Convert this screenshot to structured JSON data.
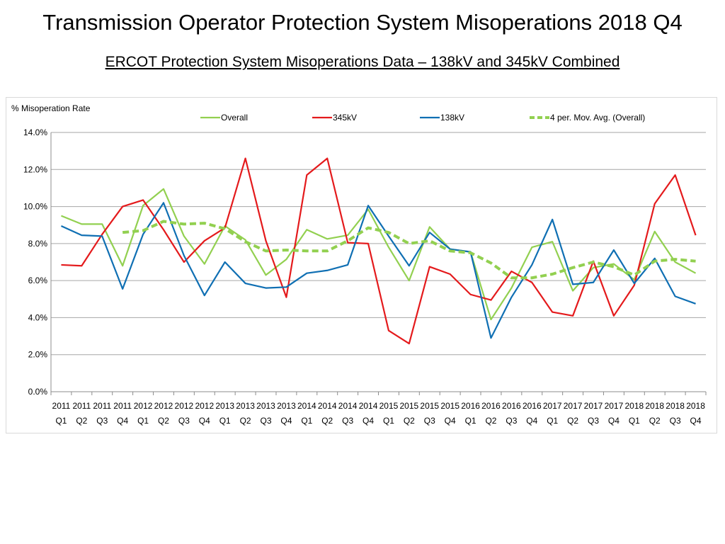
{
  "header": {
    "title": "Transmission Operator Protection System Misoperations 2018 Q4",
    "subtitle": "ERCOT Protection System Misoperations Data – 138kV and 345kV Combined"
  },
  "chart_data": {
    "type": "line",
    "ylabel": "% Misoperation Rate",
    "ylim": [
      0,
      14
    ],
    "yticks": [
      "0.0%",
      "2.0%",
      "4.0%",
      "6.0%",
      "8.0%",
      "10.0%",
      "12.0%",
      "14.0%"
    ],
    "grid": true,
    "legend_position": "top",
    "categories": [
      [
        "2011",
        "Q1"
      ],
      [
        "2011",
        "Q2"
      ],
      [
        "2011",
        "Q3"
      ],
      [
        "2011",
        "Q4"
      ],
      [
        "2012",
        "Q1"
      ],
      [
        "2012",
        "Q2"
      ],
      [
        "2012",
        "Q3"
      ],
      [
        "2012",
        "Q4"
      ],
      [
        "2013",
        "Q1"
      ],
      [
        "2013",
        "Q2"
      ],
      [
        "2013",
        "Q3"
      ],
      [
        "2013",
        "Q4"
      ],
      [
        "2014",
        "Q1"
      ],
      [
        "2014",
        "Q2"
      ],
      [
        "2014",
        "Q3"
      ],
      [
        "2014",
        "Q4"
      ],
      [
        "2015",
        "Q1"
      ],
      [
        "2015",
        "Q2"
      ],
      [
        "2015",
        "Q3"
      ],
      [
        "2015",
        "Q4"
      ],
      [
        "2016",
        "Q1"
      ],
      [
        "2016",
        "Q2"
      ],
      [
        "2016",
        "Q3"
      ],
      [
        "2016",
        "Q4"
      ],
      [
        "2017",
        "Q1"
      ],
      [
        "2017",
        "Q2"
      ],
      [
        "2017",
        "Q3"
      ],
      [
        "2017",
        "Q4"
      ],
      [
        "2018",
        "Q1"
      ],
      [
        "2018",
        "Q2"
      ],
      [
        "2018",
        "Q3"
      ],
      [
        "2018",
        "Q4"
      ]
    ],
    "series": [
      {
        "name": "Overall",
        "color": "#92d050",
        "dashed": false,
        "values": [
          9.5,
          9.05,
          9.05,
          6.8,
          10.05,
          10.95,
          8.4,
          6.9,
          8.95,
          8.2,
          6.3,
          7.15,
          8.75,
          8.25,
          8.45,
          9.85,
          7.8,
          6.0,
          8.9,
          7.7,
          7.55,
          3.9,
          5.6,
          7.8,
          8.1,
          5.45,
          6.7,
          6.9,
          6.05,
          8.65,
          7.0,
          6.4
        ]
      },
      {
        "name": "345kV",
        "color": "#e41a1c",
        "dashed": false,
        "values": [
          6.85,
          6.8,
          8.5,
          10.0,
          10.35,
          8.75,
          7.0,
          8.15,
          8.85,
          12.6,
          8.15,
          5.1,
          11.7,
          12.6,
          8.05,
          8.0,
          3.3,
          2.6,
          6.75,
          6.35,
          5.25,
          4.95,
          6.5,
          5.9,
          4.3,
          4.1,
          7.05,
          4.1,
          5.75,
          10.15,
          11.7,
          8.45
        ]
      },
      {
        "name": "138kV",
        "color": "#0f6fb3",
        "dashed": false,
        "values": [
          8.95,
          8.45,
          8.4,
          5.55,
          8.5,
          10.2,
          7.35,
          5.2,
          7.0,
          5.85,
          5.6,
          5.65,
          6.4,
          6.55,
          6.85,
          10.05,
          8.4,
          6.8,
          8.6,
          7.7,
          7.55,
          2.9,
          5.1,
          6.85,
          9.3,
          5.8,
          5.9,
          7.65,
          5.85,
          7.2,
          5.15,
          4.75
        ]
      },
      {
        "name": "4 per. Mov. Avg. (Overall)",
        "color": "#92d050",
        "dashed": true,
        "values": [
          null,
          null,
          null,
          8.6,
          8.7,
          9.2,
          9.05,
          9.1,
          8.8,
          8.1,
          7.6,
          7.65,
          7.6,
          7.6,
          8.15,
          8.85,
          8.6,
          8.0,
          8.15,
          7.6,
          7.5,
          6.95,
          6.15,
          6.15,
          6.35,
          6.7,
          7.0,
          6.75,
          6.3,
          7.05,
          7.15,
          7.05
        ]
      }
    ]
  }
}
